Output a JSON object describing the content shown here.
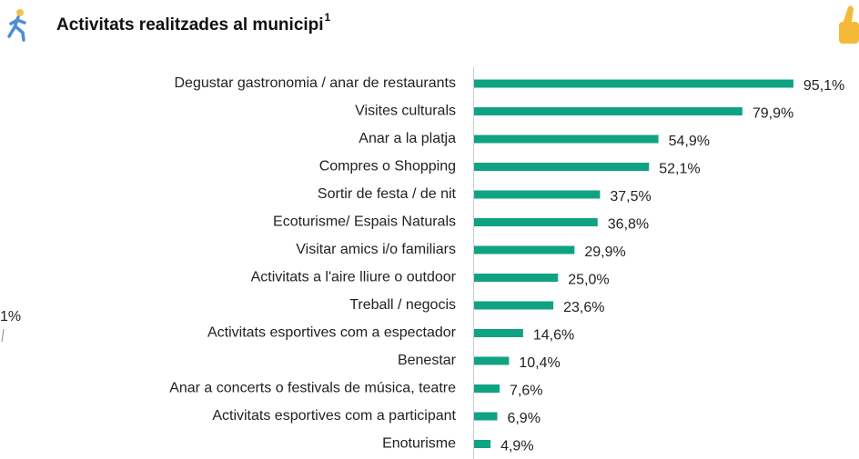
{
  "chart_data": {
    "type": "bar",
    "orientation": "horizontal",
    "title": "Activitats realitzades al municipi",
    "title_note": "1",
    "annotation": "1%",
    "categories": [
      "Degustar gastronomia / anar de restaurants",
      "Visites culturals",
      "Anar a la platja",
      "Compres o Shopping",
      "Sortir de festa / de nit",
      "Ecoturisme/ Espais Naturals",
      "Visitar amics i/o familiars",
      "Activitats a l'aire lliure o outdoor",
      "Treball / negocis",
      "Activitats esportives com a espectador",
      "Benestar",
      "Anar a concerts o festivals de música, teatre",
      "Activitats esportives com a participant",
      "Enoturisme"
    ],
    "values": [
      95.1,
      79.9,
      54.9,
      52.1,
      37.5,
      36.8,
      29.9,
      25.0,
      23.6,
      14.6,
      10.4,
      7.6,
      6.9,
      4.9
    ],
    "value_labels": [
      "95,1%",
      "79,9%",
      "54,9%",
      "52,1%",
      "37,5%",
      "36,8%",
      "29,9%",
      "25,0%",
      "23,6%",
      "14,6%",
      "10,4%",
      "7,6%",
      "6,9%",
      "4,9%"
    ],
    "color": "#10a383",
    "xlim": [
      0,
      100
    ]
  }
}
